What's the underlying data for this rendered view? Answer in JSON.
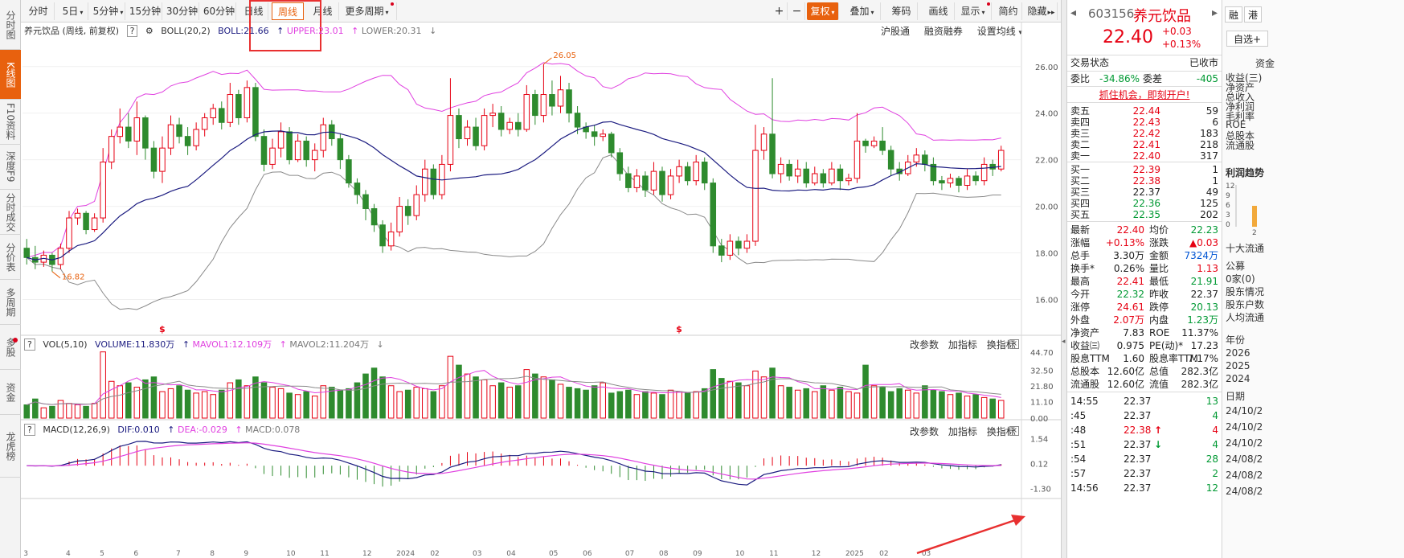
{
  "left_nav": [
    {
      "label": "分时图",
      "active": false
    },
    {
      "label": "K线图",
      "active": true
    },
    {
      "label": "F10资料",
      "active": false
    },
    {
      "label": "深度F9",
      "active": false
    },
    {
      "label": "分时成交",
      "active": false
    },
    {
      "label": "分价表",
      "active": false
    },
    {
      "label": "多周期",
      "active": false
    },
    {
      "label": "多股",
      "active": false
    },
    {
      "label": "资金",
      "active": false
    },
    {
      "label": "龙虎榜",
      "active": false
    }
  ],
  "toolbar": {
    "periods": [
      "分时",
      "5日",
      "5分钟",
      "15分钟",
      "30分钟",
      "60分钟",
      "日线",
      "周线",
      "月线",
      "更多周期"
    ],
    "active_period": "周线",
    "right_buttons": [
      "复权",
      "叠加",
      "筹码",
      "画线",
      "显示",
      "简约",
      "隐藏"
    ]
  },
  "kline_header": {
    "title": "养元饮品 (周线, 前复权)",
    "boll_name": "BOLL(20,2)",
    "boll": "BOLL:21.66",
    "upper": "UPPER:23.01",
    "lower": "LOWER:20.31",
    "right_links": [
      "沪股通",
      "融资融券",
      "设置均线"
    ]
  },
  "kline_annotations": {
    "high_label": "26.05",
    "low_label": "16.82",
    "marker": "$"
  },
  "vol_header": {
    "name": "VOL(5,10)",
    "volume": "VOLUME:11.830万",
    "mavol1": "MAVOL1:12.109万",
    "mavol2": "MAVOL2:11.204万",
    "right_links": [
      "改参数",
      "加指标",
      "换指标"
    ]
  },
  "macd_header": {
    "name": "MACD(12,26,9)",
    "dif": "DIF:0.010",
    "dea": "DEA:-0.029",
    "macd": "MACD:0.078",
    "right_links": [
      "改参数",
      "加指标",
      "换指标"
    ]
  },
  "chart_data": {
    "type": "candlestick",
    "price_axis": [
      "26.00",
      "24.00",
      "22.00",
      "20.00",
      "18.00",
      "16.00"
    ],
    "price_ticks": [
      26,
      24,
      22,
      20,
      18,
      16
    ],
    "price_range": [
      14.6,
      27.2
    ],
    "vol_axis": [
      "44.70",
      "32.50",
      "21.80",
      "11.10",
      "0.00"
    ],
    "vol_ticks": [
      44.7,
      32.5,
      21.8,
      11.1,
      0
    ],
    "vol_range": [
      0,
      47
    ],
    "macd_axis": [
      "1.54",
      "0.12",
      "-1.30"
    ],
    "macd_ticks": [
      1.54,
      0.12,
      -1.3
    ],
    "macd_range": [
      -1.5,
      1.7
    ],
    "x_ticks": [
      "3",
      "4",
      "5",
      "6",
      "7",
      "8",
      "9",
      "10",
      "11",
      "12",
      "2024",
      "02",
      "03",
      "04",
      "05",
      "06",
      "07",
      "08",
      "09",
      "10",
      "11",
      "12",
      "2025",
      "02",
      "03"
    ],
    "x_tick_index": [
      0,
      5,
      9,
      13,
      18,
      22,
      26,
      31,
      35,
      40,
      44,
      48,
      53,
      57,
      62,
      66,
      71,
      75,
      79,
      84,
      88,
      93,
      97,
      101,
      106
    ],
    "candles": [
      [
        18.2,
        17.8,
        18.6,
        17.5
      ],
      [
        17.8,
        17.6,
        18.3,
        17.3
      ],
      [
        17.6,
        17.9,
        18.1,
        17.4
      ],
      [
        17.9,
        17.5,
        18.0,
        17.2
      ],
      [
        17.5,
        18.2,
        18.4,
        17.3
      ],
      [
        18.2,
        19.5,
        19.8,
        18.0
      ],
      [
        19.5,
        19.7,
        19.9,
        19.2
      ],
      [
        19.7,
        19.0,
        19.8,
        18.8
      ],
      [
        19.0,
        19.5,
        19.7,
        18.9
      ],
      [
        19.5,
        21.9,
        22.5,
        19.3
      ],
      [
        21.9,
        23.0,
        23.3,
        21.6
      ],
      [
        23.0,
        23.4,
        24.2,
        22.7
      ],
      [
        23.4,
        22.8,
        24.0,
        22.5
      ],
      [
        22.8,
        23.8,
        24.5,
        22.2
      ],
      [
        23.8,
        22.5,
        23.9,
        22.0
      ],
      [
        22.5,
        21.5,
        22.8,
        21.2
      ],
      [
        21.5,
        22.5,
        23.0,
        21.0
      ],
      [
        22.5,
        23.5,
        23.9,
        22.2
      ],
      [
        23.5,
        23.0,
        23.8,
        22.7
      ],
      [
        23.0,
        22.6,
        23.4,
        22.2
      ],
      [
        22.6,
        23.3,
        23.6,
        22.4
      ],
      [
        23.3,
        23.8,
        24.0,
        23.0
      ],
      [
        23.8,
        24.2,
        24.4,
        23.5
      ],
      [
        24.2,
        23.6,
        24.5,
        23.3
      ],
      [
        23.6,
        24.8,
        25.3,
        23.4
      ],
      [
        24.8,
        23.8,
        25.0,
        23.5
      ],
      [
        23.8,
        25.1,
        25.4,
        23.6
      ],
      [
        25.1,
        23.0,
        25.3,
        22.8
      ],
      [
        23.0,
        21.8,
        23.3,
        21.5
      ],
      [
        21.8,
        22.5,
        22.9,
        21.6
      ],
      [
        22.5,
        23.2,
        23.6,
        22.1
      ],
      [
        23.2,
        22.0,
        23.4,
        21.8
      ],
      [
        22.0,
        22.8,
        23.1,
        21.9
      ],
      [
        22.8,
        22.0,
        23.0,
        21.7
      ],
      [
        22.0,
        22.4,
        22.7,
        21.5
      ],
      [
        22.4,
        23.5,
        23.8,
        22.1
      ],
      [
        23.5,
        22.9,
        23.7,
        22.6
      ],
      [
        22.9,
        22.0,
        23.1,
        21.6
      ],
      [
        22.0,
        21.0,
        22.2,
        20.8
      ],
      [
        21.0,
        20.5,
        21.2,
        20.1
      ],
      [
        20.5,
        19.9,
        20.7,
        19.4
      ],
      [
        19.9,
        19.2,
        20.1,
        18.9
      ],
      [
        19.2,
        18.3,
        19.4,
        18.0
      ],
      [
        18.3,
        18.9,
        19.3,
        18.1
      ],
      [
        18.9,
        20.0,
        20.4,
        18.7
      ],
      [
        20.0,
        19.6,
        20.3,
        19.2
      ],
      [
        19.6,
        20.5,
        20.9,
        19.4
      ],
      [
        20.5,
        21.6,
        22.0,
        20.2
      ],
      [
        21.6,
        20.5,
        21.8,
        20.3
      ],
      [
        20.5,
        21.8,
        22.2,
        20.3
      ],
      [
        21.8,
        23.9,
        25.5,
        21.5
      ],
      [
        23.9,
        22.9,
        24.2,
        22.5
      ],
      [
        22.9,
        23.4,
        23.7,
        22.6
      ],
      [
        23.4,
        22.6,
        23.8,
        22.4
      ],
      [
        22.6,
        23.9,
        24.2,
        22.4
      ],
      [
        23.9,
        24.0,
        24.4,
        23.4
      ],
      [
        24.0,
        23.3,
        24.3,
        23.0
      ],
      [
        23.3,
        23.6,
        23.8,
        23.1
      ],
      [
        23.6,
        23.3,
        24.0,
        23.0
      ],
      [
        23.3,
        24.8,
        25.2,
        23.2
      ],
      [
        24.8,
        23.9,
        25.0,
        23.5
      ],
      [
        23.9,
        24.8,
        26.1,
        23.6
      ],
      [
        24.8,
        24.3,
        25.4,
        23.9
      ],
      [
        24.3,
        25.0,
        25.6,
        24.0
      ],
      [
        25.0,
        24.0,
        25.3,
        23.6
      ],
      [
        24.0,
        23.4,
        24.3,
        23.1
      ],
      [
        23.4,
        23.2,
        23.6,
        22.9
      ],
      [
        23.2,
        23.0,
        23.5,
        22.6
      ],
      [
        23.0,
        23.1,
        23.3,
        22.8
      ],
      [
        23.1,
        22.3,
        23.2,
        22.1
      ],
      [
        22.3,
        21.4,
        22.5,
        21.1
      ],
      [
        21.4,
        20.8,
        21.7,
        20.6
      ],
      [
        20.8,
        21.3,
        21.6,
        20.6
      ],
      [
        21.3,
        20.7,
        21.5,
        20.4
      ],
      [
        20.7,
        21.5,
        21.9,
        20.5
      ],
      [
        21.5,
        20.5,
        21.7,
        20.2
      ],
      [
        20.5,
        21.3,
        21.6,
        20.3
      ],
      [
        21.3,
        21.7,
        22.0,
        21.0
      ],
      [
        21.7,
        21.1,
        21.9,
        20.9
      ],
      [
        21.1,
        21.9,
        22.2,
        20.9
      ],
      [
        21.9,
        21.0,
        22.1,
        20.7
      ],
      [
        21.0,
        18.3,
        21.2,
        18.0
      ],
      [
        18.3,
        17.9,
        18.6,
        17.6
      ],
      [
        17.9,
        18.5,
        18.8,
        17.7
      ],
      [
        18.5,
        18.2,
        18.7,
        17.9
      ],
      [
        18.2,
        18.5,
        18.8,
        18.0
      ],
      [
        18.5,
        22.4,
        23.5,
        18.3
      ],
      [
        22.4,
        23.1,
        23.4,
        22.0
      ],
      [
        23.1,
        21.4,
        25.5,
        21.2
      ],
      [
        21.4,
        21.8,
        22.1,
        21.0
      ],
      [
        21.8,
        21.3,
        22.0,
        21.1
      ],
      [
        21.3,
        21.6,
        22.0,
        21.0
      ],
      [
        21.6,
        21.0,
        21.9,
        20.8
      ],
      [
        21.0,
        21.4,
        21.7,
        20.9
      ],
      [
        21.4,
        21.0,
        21.6,
        20.8
      ],
      [
        21.0,
        21.6,
        21.9,
        20.9
      ],
      [
        21.6,
        21.1,
        21.8,
        20.7
      ],
      [
        21.1,
        21.2,
        21.4,
        20.9
      ],
      [
        21.2,
        22.8,
        24.0,
        21.0
      ],
      [
        22.8,
        22.6,
        22.9,
        22.3
      ],
      [
        22.6,
        22.8,
        23.0,
        22.5
      ],
      [
        22.8,
        22.4,
        23.4,
        22.2
      ],
      [
        22.4,
        21.6,
        22.6,
        21.3
      ],
      [
        21.6,
        21.4,
        21.9,
        21.1
      ],
      [
        21.4,
        21.9,
        22.2,
        21.3
      ],
      [
        21.9,
        22.2,
        22.5,
        21.7
      ],
      [
        22.2,
        21.8,
        22.4,
        21.5
      ],
      [
        21.8,
        21.1,
        22.1,
        20.9
      ],
      [
        21.1,
        21.0,
        21.3,
        20.7
      ],
      [
        21.0,
        21.2,
        21.4,
        20.8
      ],
      [
        21.2,
        20.9,
        21.3,
        20.6
      ],
      [
        20.9,
        21.3,
        21.6,
        20.7
      ],
      [
        21.3,
        21.1,
        21.5,
        20.9
      ],
      [
        21.1,
        21.8,
        22.1,
        20.9
      ],
      [
        21.8,
        21.6,
        22.0,
        21.3
      ],
      [
        21.6,
        22.4,
        22.6,
        21.5
      ]
    ],
    "volumes": [
      9,
      13,
      7,
      8,
      12,
      10,
      9,
      8,
      10,
      45,
      25,
      22,
      24,
      21,
      26,
      28,
      18,
      20,
      22,
      19,
      17,
      18,
      16,
      19,
      24,
      26,
      22,
      28,
      24,
      21,
      20,
      17,
      16,
      18,
      15,
      22,
      21,
      19,
      20,
      24,
      30,
      34,
      28,
      22,
      18,
      19,
      21,
      20,
      18,
      22,
      42,
      36,
      30,
      28,
      26,
      22,
      24,
      21,
      22,
      33,
      30,
      28,
      26,
      23,
      21,
      20,
      19,
      22,
      24,
      17,
      18,
      19,
      16,
      18,
      17,
      16,
      19,
      18,
      17,
      18,
      20,
      33,
      27,
      25,
      24,
      22,
      32,
      28,
      34,
      22,
      21,
      19,
      20,
      18,
      22,
      19,
      21,
      18,
      17,
      36,
      22,
      21,
      18,
      20,
      19,
      17,
      22,
      19,
      18,
      16,
      17,
      15,
      16,
      14,
      13,
      12
    ],
    "vol_up_color": "#e60012",
    "vol_down_color": "#2e8b2e",
    "colors": {
      "boll": "#1c1c80",
      "upper": "#e040e0",
      "lower": "#8a8a8a",
      "dif": "#1c1c80",
      "dea": "#e040e0",
      "up": "#e60012",
      "down": "#2e8b2e",
      "accent": "#e8610e"
    }
  },
  "quote": {
    "code": "603156",
    "name": "养元饮品",
    "price": "22.40",
    "change": "+0.03",
    "change_pct": "+0.13%",
    "trade_status_label": "交易状态",
    "trade_status": "已收市",
    "weibi_label": "委比",
    "weibi": "-34.86%",
    "weicha_label": "委差",
    "weicha": "-405",
    "promo": "抓住机会，即刻开户!",
    "asks": [
      {
        "label": "卖五",
        "price": "22.44",
        "vol": "59"
      },
      {
        "label": "卖四",
        "price": "22.43",
        "vol": "6"
      },
      {
        "label": "卖三",
        "price": "22.42",
        "vol": "183"
      },
      {
        "label": "卖二",
        "price": "22.41",
        "vol": "218"
      },
      {
        "label": "卖一",
        "price": "22.40",
        "vol": "317"
      }
    ],
    "bids": [
      {
        "label": "买一",
        "price": "22.39",
        "vol": "1"
      },
      {
        "label": "买二",
        "price": "22.38",
        "vol": "1"
      },
      {
        "label": "买三",
        "price": "22.37",
        "vol": "49"
      },
      {
        "label": "买四",
        "price": "22.36",
        "vol": "125"
      },
      {
        "label": "买五",
        "price": "22.35",
        "vol": "202"
      }
    ],
    "stats": [
      {
        "l1": "最新",
        "v1": "22.40",
        "c1": "red",
        "l2": "均价",
        "v2": "22.23",
        "c2": "green"
      },
      {
        "l1": "涨幅",
        "v1": "+0.13%",
        "c1": "red",
        "l2": "涨跌",
        "v2": "▲0.03",
        "c2": "red"
      },
      {
        "l1": "总手",
        "v1": "3.30万",
        "c1": "",
        "l2": "金额",
        "v2": "7324万",
        "c2": "blue"
      },
      {
        "l1": "换手*",
        "v1": "0.26%",
        "c1": "",
        "l2": "量比",
        "v2": "1.13",
        "c2": "red"
      },
      {
        "l1": "最高",
        "v1": "22.41",
        "c1": "red",
        "l2": "最低",
        "v2": "21.91",
        "c2": "green"
      },
      {
        "l1": "今开",
        "v1": "22.32",
        "c1": "green",
        "l2": "昨收",
        "v2": "22.37",
        "c2": ""
      },
      {
        "l1": "涨停",
        "v1": "24.61",
        "c1": "red",
        "l2": "跌停",
        "v2": "20.13",
        "c2": "green"
      },
      {
        "l1": "外盘",
        "v1": "2.07万",
        "c1": "red",
        "l2": "内盘",
        "v2": "1.23万",
        "c2": "green"
      },
      {
        "l1": "净资产",
        "v1": "7.83",
        "c1": "",
        "l2": "ROE",
        "v2": "11.37%",
        "c2": ""
      },
      {
        "l1": "收益㈢",
        "v1": "0.975",
        "c1": "",
        "l2": "PE(动)*",
        "v2": "17.23",
        "c2": ""
      },
      {
        "l1": "股息TTM",
        "v1": "1.60",
        "c1": "",
        "l2": "股息率TTM",
        "v2": "7.17%",
        "c2": ""
      },
      {
        "l1": "总股本",
        "v1": "12.60亿",
        "c1": "",
        "l2": "总值",
        "v2": "282.3亿",
        "c2": ""
      },
      {
        "l1": "流通股",
        "v1": "12.60亿",
        "c1": "",
        "l2": "流值",
        "v2": "282.3亿",
        "c2": ""
      }
    ],
    "ticks": [
      {
        "time": "14:55",
        "price": "22.37",
        "vol": "13",
        "pc": "",
        "vc": "green",
        "arrow": ""
      },
      {
        "time": ":45",
        "price": "22.37",
        "vol": "4",
        "pc": "",
        "vc": "green",
        "arrow": ""
      },
      {
        "time": ":48",
        "price": "22.38",
        "vol": "4",
        "pc": "red",
        "vc": "red",
        "arrow": "↑"
      },
      {
        "time": ":51",
        "price": "22.37",
        "vol": "4",
        "pc": "",
        "vc": "green",
        "arrow": "↓"
      },
      {
        "time": ":54",
        "price": "22.37",
        "vol": "28",
        "pc": "",
        "vc": "green",
        "arrow": ""
      },
      {
        "time": ":57",
        "price": "22.37",
        "vol": "2",
        "pc": "",
        "vc": "green",
        "arrow": ""
      },
      {
        "time": "14:56",
        "price": "22.37",
        "vol": "12",
        "pc": "",
        "vc": "green",
        "arrow": ""
      }
    ]
  },
  "far_right": {
    "tabs": [
      "融",
      "港"
    ],
    "button": "自选+",
    "section": "资金",
    "items": [
      "收益(三)",
      "净资产",
      "总收入",
      "净利润",
      "毛利率",
      "ROE",
      "总股本",
      "流通股"
    ],
    "chart_title": "利润趋势",
    "chart_ticks": [
      "12",
      "9",
      "6",
      "3",
      "0"
    ],
    "chart_label": "2",
    "list_title": "十大流通",
    "list2": [
      "公募",
      "0家(0)",
      "股东情况",
      "股东户数",
      "人均流通"
    ],
    "years_title": "年份",
    "years": [
      "2026",
      "2025",
      "2024"
    ],
    "dates_title": "日期",
    "dates": [
      "24/10/2",
      "24/10/2",
      "24/10/2",
      "24/08/2",
      "24/08/2",
      "24/08/2"
    ]
  }
}
